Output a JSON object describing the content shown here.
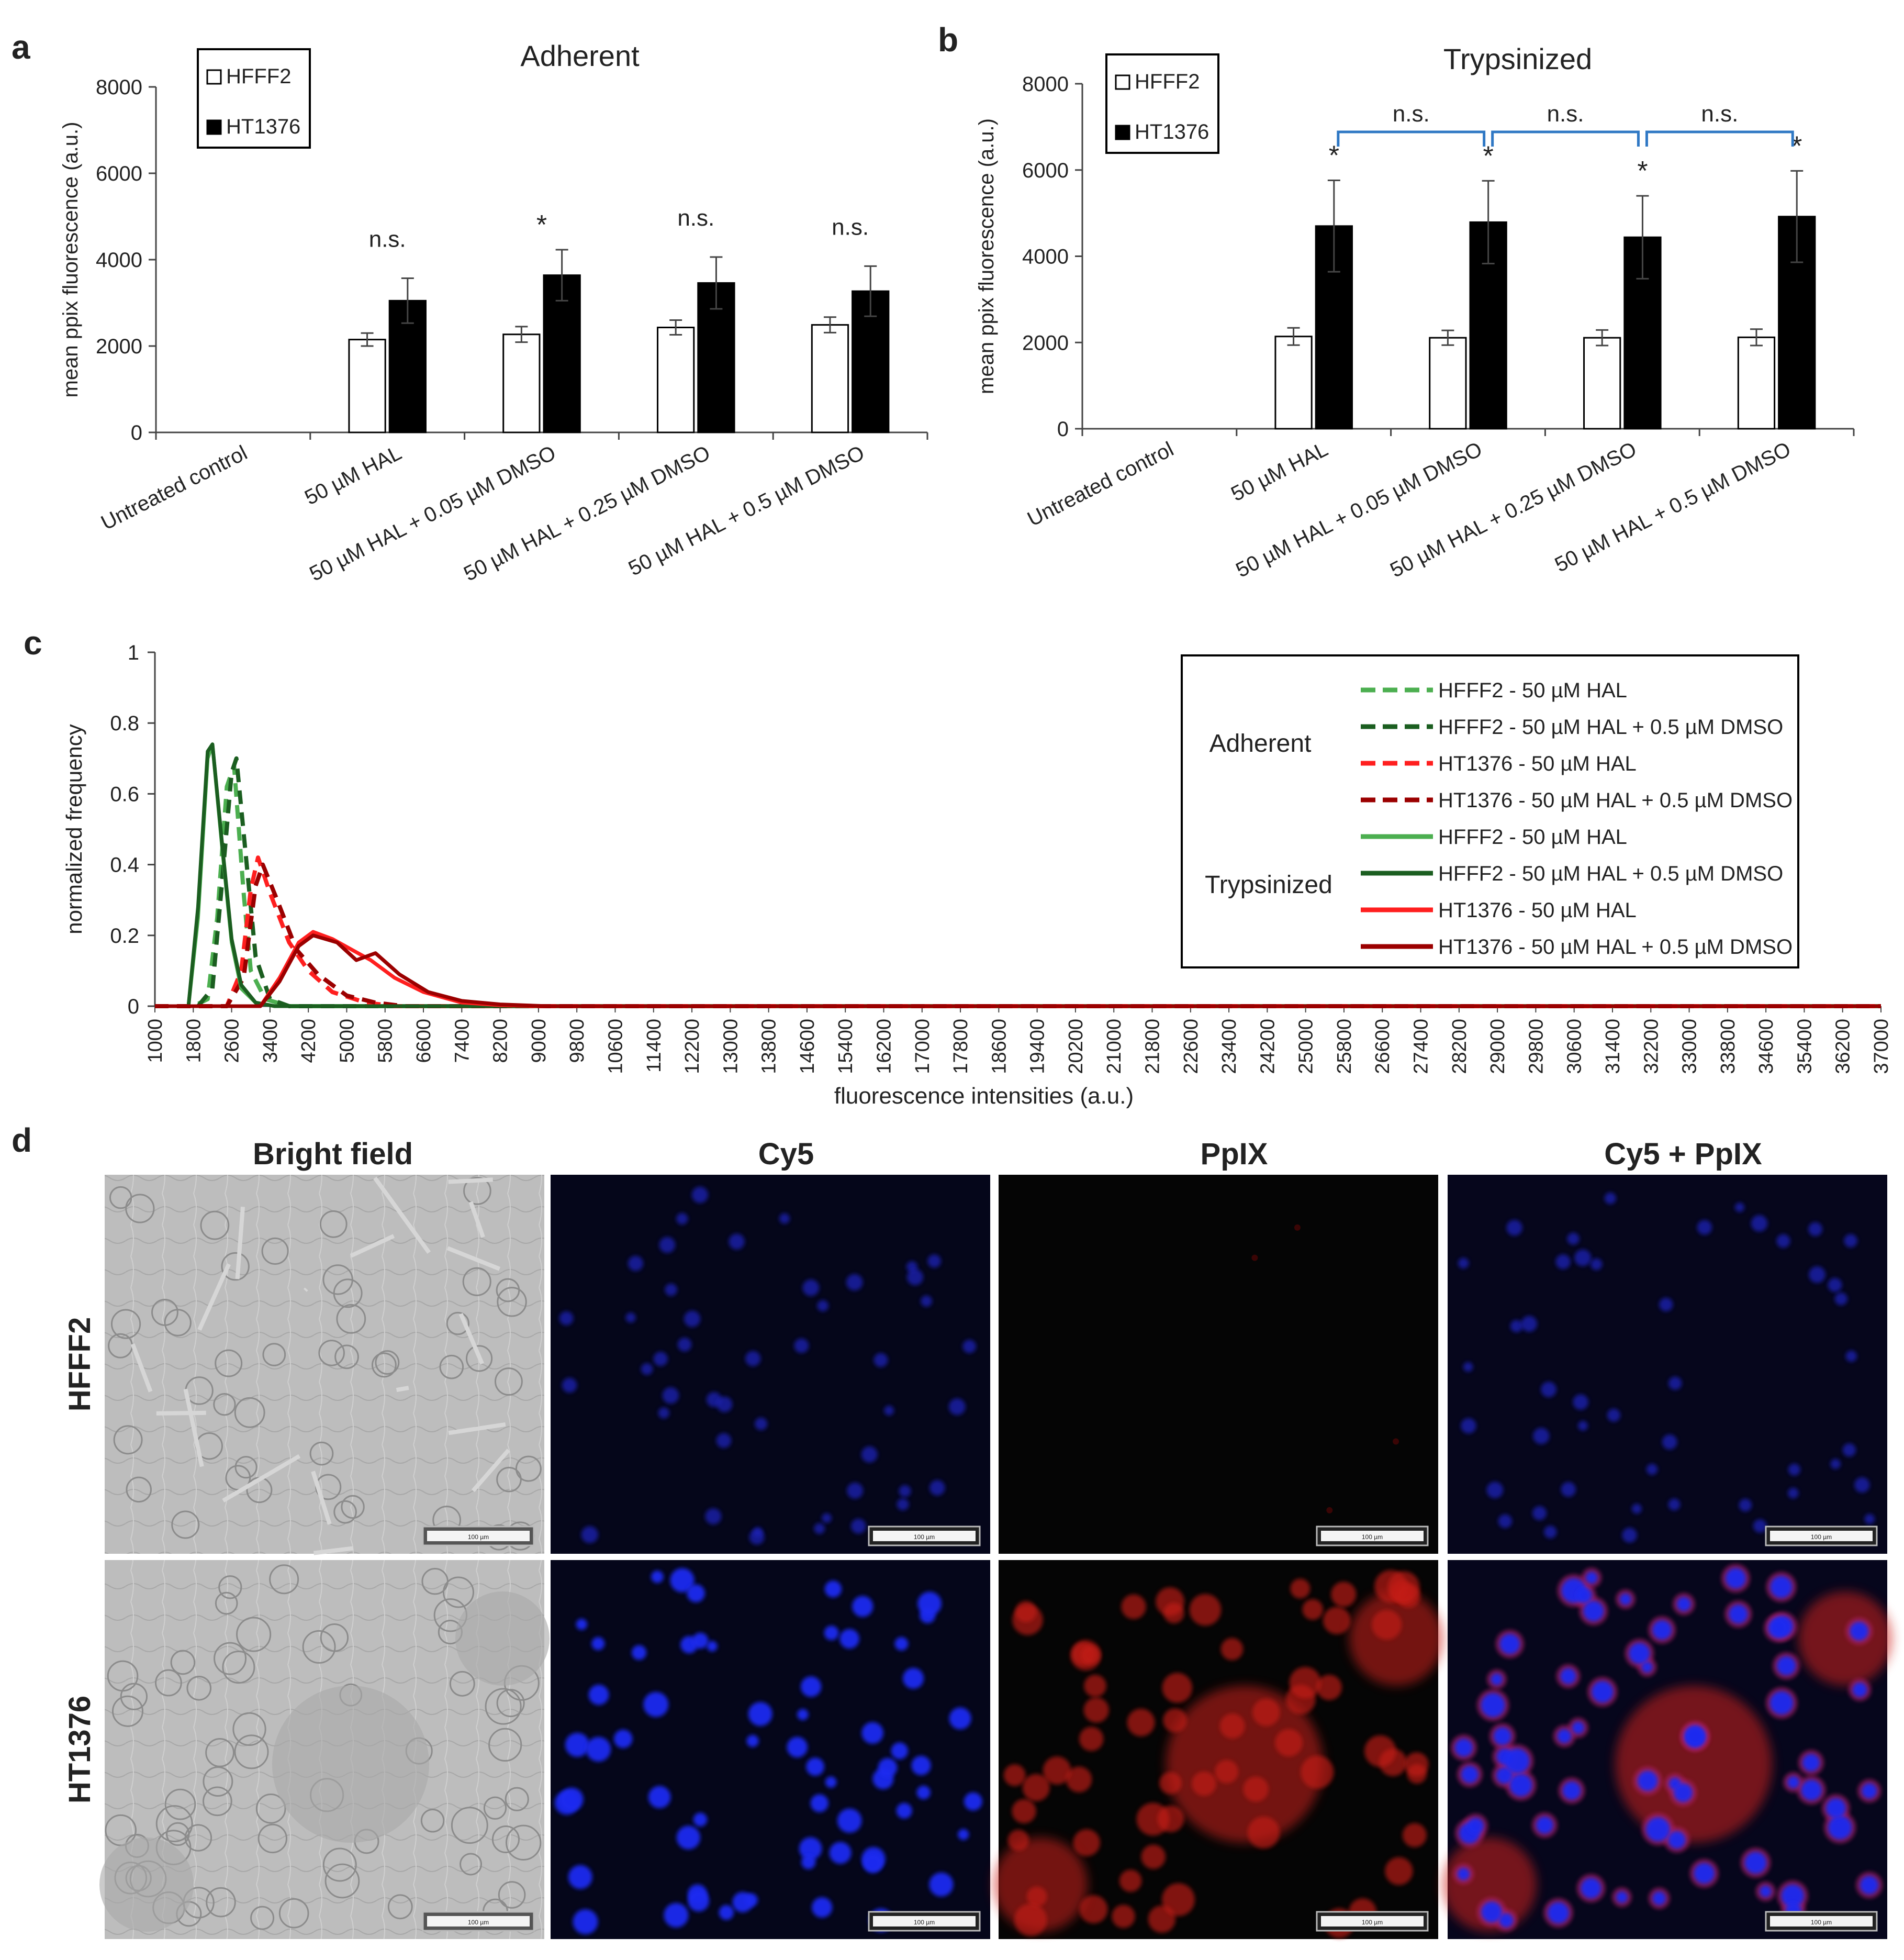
{
  "panel_letters": [
    "a",
    "b",
    "c",
    "d"
  ],
  "chart_data": [
    {
      "type": "bar",
      "panel": "a",
      "title": "Adherent",
      "ylabel": "mean ppix fluorescence (a.u.)",
      "xlabel": "",
      "ylim": [
        0,
        8000
      ],
      "yticks": [
        "0",
        "2000",
        "4000",
        "6000",
        "8000"
      ],
      "categories": [
        "Untreated control",
        "50 µM HAL",
        "50 µM HAL + 0.05 µM DMSO",
        "50 µM HAL + 0.25 µM DMSO",
        "50 µM HAL + 0.5 µM DMSO"
      ],
      "series": [
        {
          "name": "HFFF2",
          "color": "#ffffff",
          "values": [
            0,
            2150,
            2270,
            2430,
            2490
          ],
          "errors": [
            0,
            150,
            180,
            170,
            180
          ]
        },
        {
          "name": "HT1376",
          "color": "#000000",
          "values": [
            0,
            3050,
            3640,
            3460,
            3270
          ],
          "errors": [
            0,
            520,
            590,
            600,
            580
          ]
        }
      ],
      "annotations": [
        "",
        "n.s.",
        "*",
        "n.s.",
        "n.s."
      ],
      "legend_position": "top-left",
      "grid": false
    },
    {
      "type": "bar",
      "panel": "b",
      "title": "Trypsinized",
      "ylabel": "mean ppix fluorescence (a.u.)",
      "xlabel": "",
      "ylim": [
        0,
        8000
      ],
      "yticks": [
        "0",
        "2000",
        "4000",
        "6000",
        "8000"
      ],
      "categories": [
        "Untreated control",
        "50 µM HAL",
        "50 µM HAL + 0.05 µM DMSO",
        "50 µM HAL + 0.25 µM DMSO",
        "50 µM HAL + 0.5 µM DMSO"
      ],
      "series": [
        {
          "name": "HFFF2",
          "color": "#ffffff",
          "values": [
            0,
            2140,
            2110,
            2110,
            2120
          ],
          "errors": [
            0,
            200,
            170,
            180,
            190
          ]
        },
        {
          "name": "HT1376",
          "color": "#000000",
          "values": [
            0,
            4700,
            4790,
            4440,
            4920
          ],
          "errors": [
            0,
            1060,
            960,
            960,
            1060
          ]
        }
      ],
      "annotations": [
        "",
        "*",
        "*",
        "*",
        "*"
      ],
      "brackets": [
        {
          "from": 1,
          "to": 2,
          "label": "n.s."
        },
        {
          "from": 2,
          "to": 3,
          "label": "n.s."
        },
        {
          "from": 3,
          "to": 4,
          "label": "n.s."
        }
      ],
      "legend_position": "top-left",
      "grid": false
    },
    {
      "type": "line",
      "panel": "c",
      "ylabel": "normalized frequency",
      "xlabel": "fluorescence intensities (a.u.)",
      "ylim": [
        0,
        1
      ],
      "yticks": [
        "0",
        "0.2",
        "0.4",
        "0.6",
        "0.8",
        "1"
      ],
      "xlim": [
        1000,
        37000
      ],
      "xticks": [
        "1000",
        "1800",
        "2600",
        "3400",
        "4200",
        "5000",
        "5800",
        "6600",
        "7400",
        "8200",
        "9000",
        "9800",
        "10600",
        "11400",
        "12200",
        "13000",
        "13800",
        "14600",
        "15400",
        "16200",
        "17000",
        "17800",
        "18600",
        "19400",
        "20200",
        "21000",
        "21800",
        "22600",
        "23400",
        "24200",
        "25000",
        "25800",
        "26600",
        "27400",
        "28200",
        "29000",
        "29800",
        "30600",
        "31400",
        "32200",
        "33000",
        "33800",
        "34600",
        "35400",
        "36200",
        "37000"
      ],
      "legend_groups": [
        "Adherent",
        "Trypsinized"
      ],
      "series": [
        {
          "name": "HFFF2 - 50 µM HAL",
          "group": "Adherent",
          "style": "dashed",
          "color": "#4caf50",
          "points": [
            [
              1000,
              0
            ],
            [
              1800,
              0
            ],
            [
              2100,
              0.02
            ],
            [
              2300,
              0.25
            ],
            [
              2500,
              0.62
            ],
            [
              2650,
              0.68
            ],
            [
              2850,
              0.32
            ],
            [
              3000,
              0.1
            ],
            [
              3300,
              0.02
            ],
            [
              3800,
              0
            ],
            [
              37000,
              0
            ]
          ]
        },
        {
          "name": "HFFF2 - 50 µM HAL + 0.5 µM DMSO",
          "group": "Adherent",
          "style": "dashed",
          "color": "#1b5e20",
          "points": [
            [
              1000,
              0
            ],
            [
              1900,
              0
            ],
            [
              2200,
              0.05
            ],
            [
              2400,
              0.35
            ],
            [
              2600,
              0.66
            ],
            [
              2700,
              0.7
            ],
            [
              2900,
              0.42
            ],
            [
              3100,
              0.14
            ],
            [
              3400,
              0.02
            ],
            [
              3800,
              0
            ],
            [
              37000,
              0
            ]
          ]
        },
        {
          "name": "HT1376 - 50 µM HAL",
          "group": "Adherent",
          "style": "dashed",
          "color": "#ff1f1f",
          "points": [
            [
              1000,
              0
            ],
            [
              2500,
              0
            ],
            [
              2800,
              0.1
            ],
            [
              3000,
              0.33
            ],
            [
              3150,
              0.42
            ],
            [
              3400,
              0.32
            ],
            [
              3800,
              0.18
            ],
            [
              4200,
              0.1
            ],
            [
              4700,
              0.04
            ],
            [
              5400,
              0.01
            ],
            [
              6000,
              0
            ],
            [
              37000,
              0
            ]
          ]
        },
        {
          "name": "HT1376 - 50 µM HAL + 0.5 µM DMSO",
          "group": "Adherent",
          "style": "dashed",
          "color": "#9b0000",
          "points": [
            [
              1000,
              0
            ],
            [
              2500,
              0
            ],
            [
              2850,
              0.08
            ],
            [
              3100,
              0.34
            ],
            [
              3250,
              0.4
            ],
            [
              3550,
              0.3
            ],
            [
              3950,
              0.16
            ],
            [
              4400,
              0.09
            ],
            [
              5000,
              0.03
            ],
            [
              5600,
              0.01
            ],
            [
              6200,
              0
            ],
            [
              37000,
              0
            ]
          ]
        },
        {
          "name": "HFFF2 - 50 µM HAL",
          "group": "Trypsinized",
          "style": "solid",
          "color": "#4caf50",
          "points": [
            [
              1000,
              0
            ],
            [
              1700,
              0
            ],
            [
              1900,
              0.25
            ],
            [
              2100,
              0.7
            ],
            [
              2200,
              0.74
            ],
            [
              2400,
              0.45
            ],
            [
              2600,
              0.18
            ],
            [
              2800,
              0.05
            ],
            [
              3100,
              0.01
            ],
            [
              3500,
              0
            ],
            [
              37000,
              0
            ]
          ]
        },
        {
          "name": "HFFF2 - 50 µM HAL + 0.5 µM DMSO",
          "group": "Trypsinized",
          "style": "solid",
          "color": "#1b5e20",
          "points": [
            [
              1000,
              0
            ],
            [
              1700,
              0
            ],
            [
              1900,
              0.28
            ],
            [
              2100,
              0.72
            ],
            [
              2200,
              0.74
            ],
            [
              2400,
              0.46
            ],
            [
              2600,
              0.19
            ],
            [
              2800,
              0.06
            ],
            [
              3100,
              0.01
            ],
            [
              3500,
              0
            ],
            [
              37000,
              0
            ]
          ]
        },
        {
          "name": "HT1376 - 50 µM HAL",
          "group": "Trypsinized",
          "style": "solid",
          "color": "#ff1f1f",
          "points": [
            [
              1000,
              0
            ],
            [
              3200,
              0
            ],
            [
              3600,
              0.08
            ],
            [
              4000,
              0.18
            ],
            [
              4300,
              0.21
            ],
            [
              4700,
              0.19
            ],
            [
              5100,
              0.16
            ],
            [
              5500,
              0.13
            ],
            [
              6000,
              0.08
            ],
            [
              6600,
              0.04
            ],
            [
              7400,
              0.01
            ],
            [
              8200,
              0.003
            ],
            [
              9000,
              0
            ],
            [
              37000,
              0
            ]
          ]
        },
        {
          "name": "HT1376 - 50 µM HAL + 0.5 µM DMSO",
          "group": "Trypsinized",
          "style": "solid",
          "color": "#9b0000",
          "points": [
            [
              1000,
              0
            ],
            [
              3200,
              0
            ],
            [
              3600,
              0.07
            ],
            [
              4000,
              0.17
            ],
            [
              4300,
              0.2
            ],
            [
              4800,
              0.18
            ],
            [
              5200,
              0.13
            ],
            [
              5600,
              0.15
            ],
            [
              6100,
              0.09
            ],
            [
              6700,
              0.04
            ],
            [
              7400,
              0.015
            ],
            [
              8200,
              0.005
            ],
            [
              9200,
              0
            ],
            [
              37000,
              0
            ]
          ]
        }
      ],
      "legend_position": "top-right",
      "grid": false
    }
  ],
  "micrographs": {
    "column_headers": [
      "Bright field",
      "Cy5",
      "PpIX",
      "Cy5 + PpIX"
    ],
    "row_labels": [
      "HFFF2",
      "HT1376"
    ],
    "scale_bar_label": "100 µm"
  }
}
